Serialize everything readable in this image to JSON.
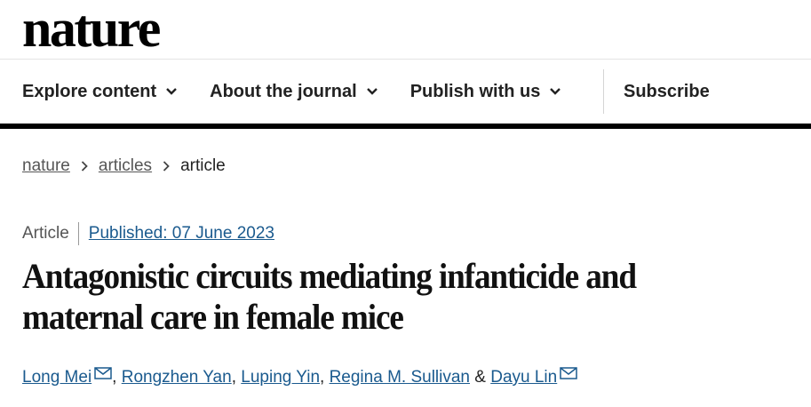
{
  "brand": {
    "logo": "nature"
  },
  "nav": {
    "items": [
      {
        "label": "Explore content"
      },
      {
        "label": "About the journal"
      },
      {
        "label": "Publish with us"
      }
    ],
    "subscribe": "Subscribe"
  },
  "breadcrumb": [
    "nature",
    "articles",
    "article"
  ],
  "article": {
    "type": "Article",
    "published": "Published: 07 June 2023",
    "title": "Antagonistic circuits mediating infanticide and maternal care in female mice",
    "authors": [
      "Long Mei",
      "Rongzhen Yan",
      "Luping Yin",
      "Regina M. Sullivan",
      "Dayu Lin"
    ],
    "separators": [
      ", ",
      ", ",
      ", ",
      " & "
    ]
  },
  "colors": {
    "link": "#1a5a8e",
    "bar": "#000000"
  }
}
